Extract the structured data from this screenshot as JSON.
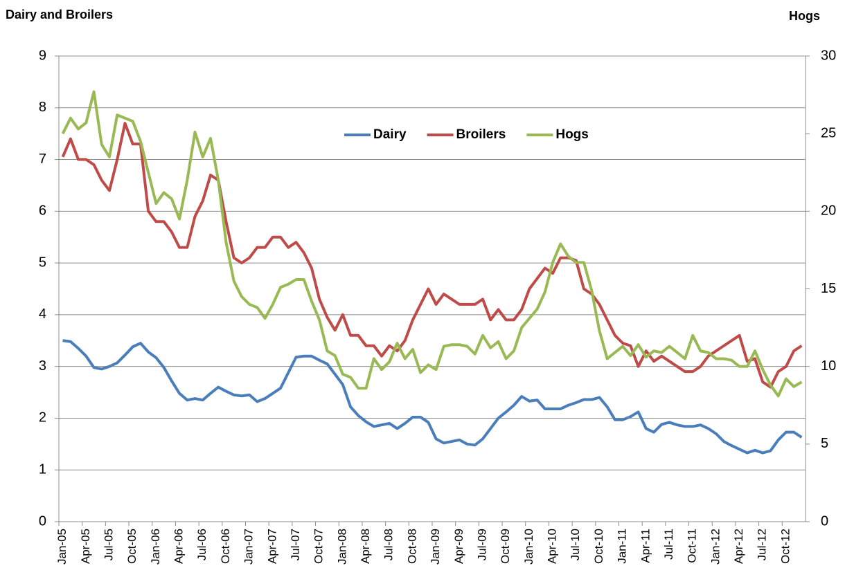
{
  "chart_data": {
    "type": "line",
    "y_label": "Dairy and Broilers",
    "y2_label": "Hogs",
    "categories": [
      "Jan-05",
      null,
      null,
      "Apr-05",
      null,
      null,
      "Jul-05",
      null,
      null,
      "Oct-05",
      null,
      null,
      "Jan-06",
      null,
      null,
      "Apr-06",
      null,
      null,
      "Jul-06",
      null,
      null,
      "Oct-06",
      null,
      null,
      "Jan-07",
      null,
      null,
      "Apr-07",
      null,
      null,
      "Jul-07",
      null,
      null,
      "Oct-07",
      null,
      null,
      "Jan-08",
      null,
      null,
      "Apr-08",
      null,
      null,
      "Jul-08",
      null,
      null,
      "Oct-08",
      null,
      null,
      "Jan-09",
      null,
      null,
      "Apr-09",
      null,
      null,
      "Jul-09",
      null,
      null,
      "Oct-09",
      null,
      null,
      "Jan-10",
      null,
      null,
      "Apr-10",
      null,
      null,
      "Jul-10",
      null,
      null,
      "Oct-10",
      null,
      null,
      "Jan-11",
      null,
      null,
      "Apr-11",
      null,
      null,
      "Jul-11",
      null,
      null,
      "Oct-11",
      null,
      null,
      "Jan-12",
      null,
      null,
      "Apr-12",
      null,
      null,
      "Jul-12",
      null,
      null,
      "Oct-12",
      null,
      null
    ],
    "series": [
      {
        "name": "Dairy",
        "color": "#4a7ebb",
        "values": [
          3.5,
          3.48,
          3.35,
          3.2,
          2.98,
          2.95,
          3.0,
          3.07,
          3.22,
          3.38,
          3.45,
          3.28,
          3.17,
          2.98,
          2.72,
          2.48,
          2.35,
          2.38,
          2.35,
          2.48,
          2.6,
          2.52,
          2.45,
          2.43,
          2.45,
          2.32,
          2.38,
          2.48,
          2.58,
          2.88,
          3.18,
          3.2,
          3.2,
          3.12,
          3.05,
          2.85,
          2.65,
          2.22,
          2.05,
          1.93,
          1.84,
          1.87,
          1.9,
          1.8,
          1.9,
          2.02,
          2.02,
          1.92,
          1.6,
          1.52,
          1.55,
          1.58,
          1.5,
          1.48,
          1.6,
          1.8,
          2.0,
          2.12,
          2.25,
          2.42,
          2.33,
          2.35,
          2.18,
          2.18,
          2.18,
          2.25,
          2.3,
          2.36,
          2.36,
          2.4,
          2.22,
          1.97,
          1.97,
          2.03,
          2.12,
          1.8,
          1.73,
          1.88,
          1.92,
          1.87,
          1.84,
          1.84,
          1.87,
          1.8,
          1.7,
          1.55,
          1.47,
          1.4,
          1.33,
          1.38,
          1.33,
          1.37,
          1.58,
          1.73,
          1.73,
          1.63
        ]
      },
      {
        "name": "Broilers",
        "color": "#be4b48",
        "values": [
          7.05,
          7.4,
          7.0,
          7.0,
          6.9,
          6.6,
          6.4,
          7.0,
          7.7,
          7.3,
          7.3,
          6.0,
          5.8,
          5.8,
          5.6,
          5.3,
          5.3,
          5.9,
          6.2,
          6.7,
          6.6,
          5.8,
          5.1,
          5.0,
          5.1,
          5.3,
          5.3,
          5.5,
          5.5,
          5.3,
          5.4,
          5.2,
          4.9,
          4.3,
          3.95,
          3.7,
          4.0,
          3.6,
          3.6,
          3.4,
          3.4,
          3.2,
          3.4,
          3.3,
          3.5,
          3.9,
          4.2,
          4.5,
          4.2,
          4.4,
          4.3,
          4.2,
          4.2,
          4.2,
          4.3,
          3.9,
          4.1,
          3.9,
          3.9,
          4.1,
          4.5,
          4.7,
          4.9,
          4.8,
          5.1,
          5.1,
          5.05,
          4.5,
          4.4,
          4.2,
          3.9,
          3.6,
          3.45,
          3.4,
          3.0,
          3.3,
          3.1,
          3.2,
          3.1,
          3.0,
          2.9,
          2.9,
          3.0,
          3.2,
          3.3,
          3.4,
          3.5,
          3.6,
          3.1,
          3.15,
          2.7,
          2.6,
          2.9,
          3.0,
          3.3,
          3.4
        ]
      },
      {
        "name": "Hogs",
        "color": "#98b954",
        "axis": "y2",
        "values": [
          25,
          26,
          25.3,
          25.7,
          27.7,
          24.3,
          23.5,
          26.2,
          26,
          25.8,
          24.5,
          22.5,
          20.5,
          21.2,
          20.8,
          19.5,
          22,
          25.1,
          23.5,
          24.7,
          22,
          18,
          15.5,
          14.5,
          14,
          13.8,
          13.1,
          14,
          15.1,
          15.3,
          15.6,
          15.6,
          14.2,
          13,
          11,
          10.7,
          9.5,
          9.3,
          8.6,
          8.6,
          10.5,
          9.8,
          10.3,
          11.5,
          10.5,
          11.1,
          9.6,
          10.1,
          9.8,
          11.3,
          11.4,
          11.4,
          11.3,
          10.8,
          12,
          11.2,
          11.6,
          10.5,
          11,
          12.5,
          13.1,
          13.7,
          14.8,
          16.7,
          17.9,
          17.1,
          16.7,
          16.7,
          14.9,
          12.3,
          10.5,
          10.9,
          11.3,
          10.7,
          11.4,
          10.6,
          11,
          10.9,
          11.3,
          10.9,
          10.5,
          12,
          11,
          10.9,
          10.5,
          10.5,
          10.4,
          10,
          10,
          11,
          9.8,
          8.8,
          8.1,
          9.2,
          8.7,
          9.0
        ]
      }
    ],
    "ylim": [
      0,
      9
    ],
    "yticks": [
      0,
      1,
      2,
      3,
      4,
      5,
      6,
      7,
      8,
      9
    ],
    "y2lim": [
      0,
      30
    ],
    "y2ticks": [
      0,
      5,
      10,
      15,
      20,
      25,
      30
    ],
    "grid": true,
    "legend": "top"
  }
}
